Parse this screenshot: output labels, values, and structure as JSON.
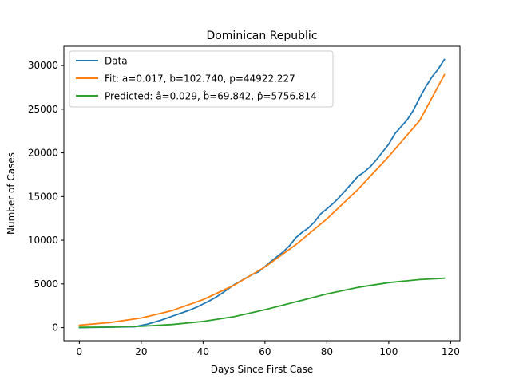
{
  "chart_data": {
    "type": "line",
    "title": "Dominican Republic",
    "xlabel": "Days Since First Case",
    "ylabel": "Number of Cases",
    "xlim": [
      -5,
      123
    ],
    "ylim": [
      -1500,
      32200
    ],
    "xticks": [
      0,
      20,
      40,
      60,
      80,
      100,
      120
    ],
    "yticks": [
      0,
      5000,
      10000,
      15000,
      20000,
      25000,
      30000
    ],
    "grid": false,
    "legend_position": "top-left",
    "series": [
      {
        "name": "Data",
        "color": "#1f77b4",
        "x": [
          0,
          10,
          18,
          20,
          22,
          24,
          26,
          28,
          30,
          32,
          34,
          36,
          38,
          40,
          42,
          44,
          46,
          48,
          50,
          52,
          54,
          56,
          58,
          60,
          62,
          64,
          66,
          68,
          70,
          72,
          74,
          76,
          78,
          80,
          82,
          84,
          86,
          88,
          90,
          92,
          94,
          96,
          98,
          100,
          102,
          104,
          106,
          108,
          110,
          112,
          114,
          116,
          118
        ],
        "y": [
          0,
          50,
          100,
          250,
          400,
          600,
          800,
          1050,
          1300,
          1550,
          1800,
          2050,
          2350,
          2700,
          3050,
          3450,
          3900,
          4400,
          4900,
          5300,
          5700,
          6100,
          6400,
          7000,
          7600,
          8150,
          8700,
          9400,
          10300,
          10900,
          11400,
          12100,
          13000,
          13600,
          14200,
          14900,
          15700,
          16500,
          17300,
          17800,
          18400,
          19200,
          20100,
          21000,
          22200,
          23000,
          23800,
          24900,
          26300,
          27600,
          28700,
          29600,
          30700
        ]
      },
      {
        "name": "Fit: a=0.017, b=102.740, p=44922.227",
        "color": "#ff7f0e",
        "x": [
          0,
          10,
          20,
          30,
          40,
          50,
          60,
          70,
          80,
          90,
          100,
          110,
          118
        ],
        "y": [
          280,
          580,
          1100,
          1950,
          3200,
          4850,
          6950,
          9500,
          12450,
          15800,
          19600,
          23700,
          28950
        ]
      },
      {
        "name": "Predicted: â=0.029, b̂=69.842, p̂=5756.814",
        "color": "#2ca02c",
        "x": [
          0,
          10,
          20,
          30,
          40,
          50,
          60,
          70,
          80,
          90,
          100,
          110,
          118
        ],
        "y": [
          30,
          60,
          150,
          350,
          700,
          1250,
          2050,
          2950,
          3850,
          4600,
          5150,
          5500,
          5650
        ]
      }
    ]
  }
}
